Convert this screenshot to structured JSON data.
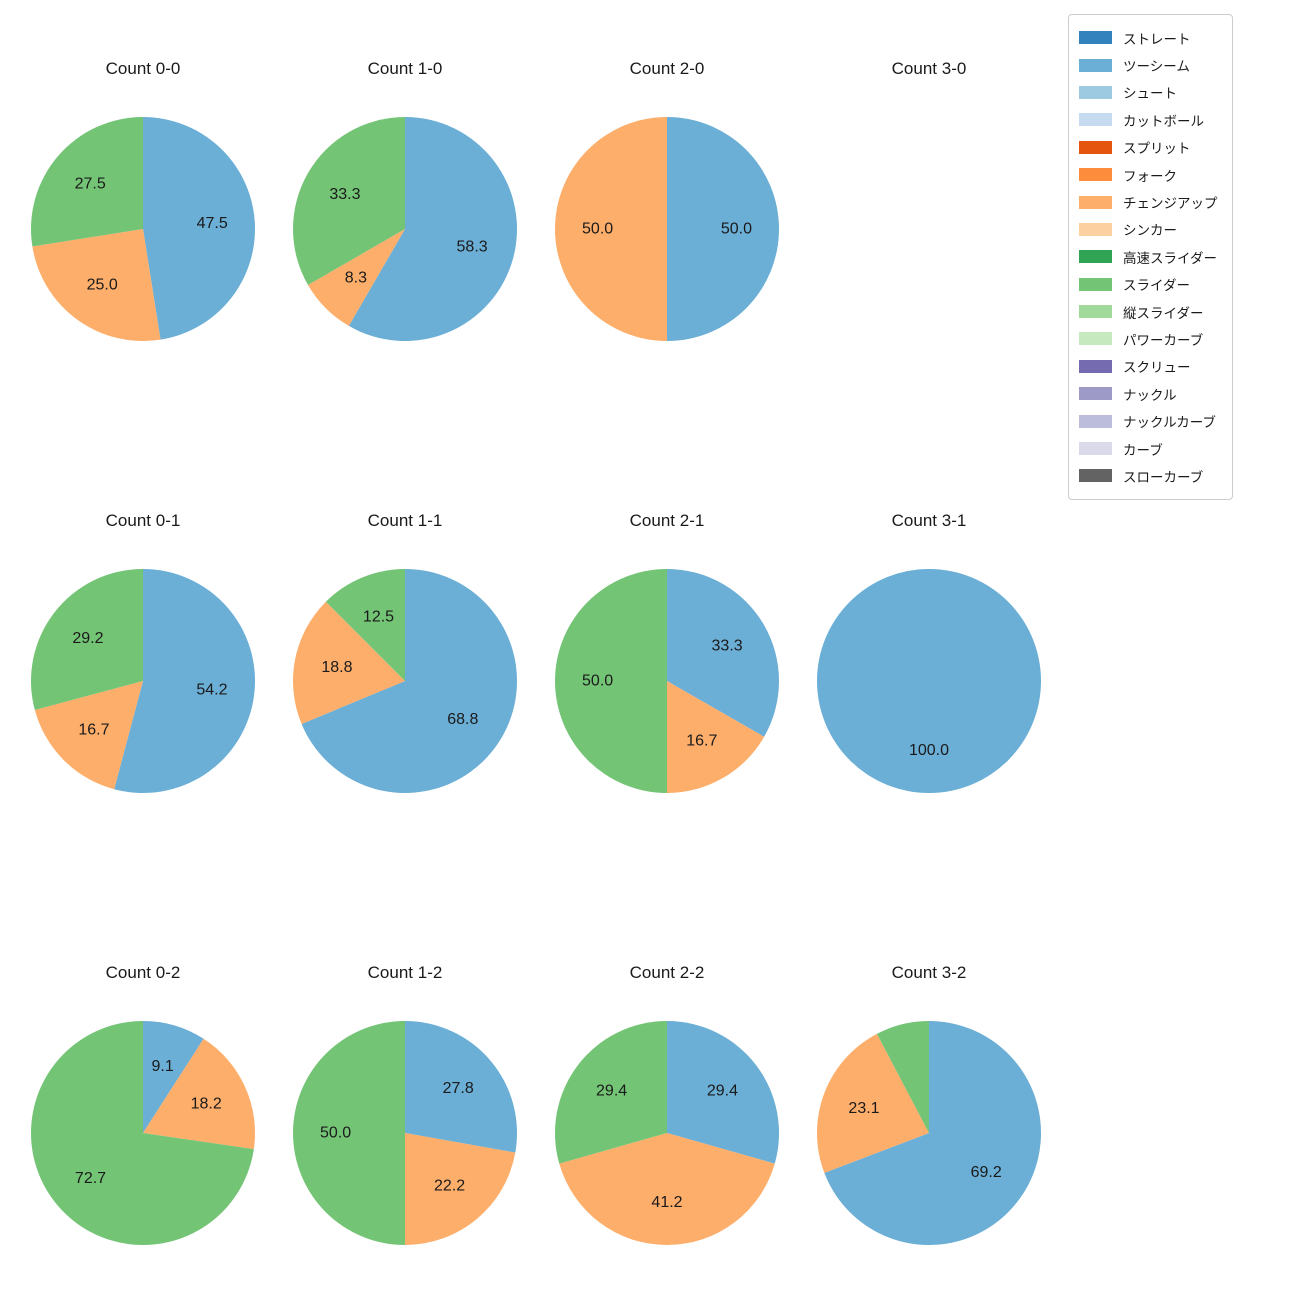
{
  "page": {
    "background": "#ffffff"
  },
  "legend": {
    "position": "top-right",
    "border_color": "#cccccc",
    "items": [
      {
        "key": "straight",
        "label": "ストレート",
        "color": "#3182bd"
      },
      {
        "key": "two-seam",
        "label": "ツーシーム",
        "color": "#6baed6"
      },
      {
        "key": "shoot",
        "label": "シュート",
        "color": "#9ecae1"
      },
      {
        "key": "cut-ball",
        "label": "カットボール",
        "color": "#c6dbef"
      },
      {
        "key": "split",
        "label": "スプリット",
        "color": "#e6550d"
      },
      {
        "key": "fork",
        "label": "フォーク",
        "color": "#fd8d3c"
      },
      {
        "key": "changeup",
        "label": "チェンジアップ",
        "color": "#fdae6b"
      },
      {
        "key": "sinker",
        "label": "シンカー",
        "color": "#fdd0a2"
      },
      {
        "key": "high-speed-slider",
        "label": "高速スライダー",
        "color": "#31a354"
      },
      {
        "key": "slider",
        "label": "スライダー",
        "color": "#74c476"
      },
      {
        "key": "vertical-slider",
        "label": "縦スライダー",
        "color": "#a1d99b"
      },
      {
        "key": "power-curve",
        "label": "パワーカーブ",
        "color": "#c7e9c0"
      },
      {
        "key": "screw",
        "label": "スクリュー",
        "color": "#756bb1"
      },
      {
        "key": "knuckle",
        "label": "ナックル",
        "color": "#9e9ac8"
      },
      {
        "key": "knuckle-curve",
        "label": "ナックルカーブ",
        "color": "#bcbddc"
      },
      {
        "key": "curve",
        "label": "カーブ",
        "color": "#dadaeb"
      },
      {
        "key": "slow-curve",
        "label": "スローカーブ",
        "color": "#636363"
      }
    ]
  },
  "chart_data": [
    {
      "type": "pie",
      "title": "Count 0-0",
      "start_angle": "top",
      "direction": "clockwise",
      "label_distance": 0.62,
      "slices": [
        {
          "key": "two-seam",
          "label": "ツーシーム",
          "value": 47.5,
          "pct_label": "47.5",
          "color": "#6baed6"
        },
        {
          "key": "changeup",
          "label": "チェンジアップ",
          "value": 25.0,
          "pct_label": "25.0",
          "color": "#fdae6b"
        },
        {
          "key": "slider",
          "label": "スライダー",
          "value": 27.5,
          "pct_label": "27.5",
          "color": "#74c476"
        }
      ]
    },
    {
      "type": "pie",
      "title": "Count 1-0",
      "start_angle": "top",
      "direction": "clockwise",
      "label_distance": 0.62,
      "slices": [
        {
          "key": "two-seam",
          "label": "ツーシーム",
          "value": 58.3,
          "pct_label": "58.3",
          "color": "#6baed6"
        },
        {
          "key": "changeup",
          "label": "チェンジアップ",
          "value": 8.3,
          "pct_label": "8.3",
          "color": "#fdae6b"
        },
        {
          "key": "slider",
          "label": "スライダー",
          "value": 33.3,
          "pct_label": "33.3",
          "color": "#74c476"
        }
      ]
    },
    {
      "type": "pie",
      "title": "Count 2-0",
      "start_angle": "top",
      "direction": "clockwise",
      "label_distance": 0.62,
      "slices": [
        {
          "key": "two-seam",
          "label": "ツーシーム",
          "value": 50.0,
          "pct_label": "50.0",
          "color": "#6baed6"
        },
        {
          "key": "changeup",
          "label": "チェンジアップ",
          "value": 50.0,
          "pct_label": "50.0",
          "color": "#fdae6b"
        }
      ]
    },
    {
      "type": "pie",
      "title": "Count 3-0",
      "start_angle": "top",
      "direction": "clockwise",
      "label_distance": 0.62,
      "slices": []
    },
    {
      "type": "pie",
      "title": "Count 0-1",
      "start_angle": "top",
      "direction": "clockwise",
      "label_distance": 0.62,
      "slices": [
        {
          "key": "two-seam",
          "label": "ツーシーム",
          "value": 54.2,
          "pct_label": "54.2",
          "color": "#6baed6"
        },
        {
          "key": "changeup",
          "label": "チェンジアップ",
          "value": 16.7,
          "pct_label": "16.7",
          "color": "#fdae6b"
        },
        {
          "key": "slider",
          "label": "スライダー",
          "value": 29.2,
          "pct_label": "29.2",
          "color": "#74c476"
        }
      ]
    },
    {
      "type": "pie",
      "title": "Count 1-1",
      "start_angle": "top",
      "direction": "clockwise",
      "label_distance": 0.62,
      "slices": [
        {
          "key": "two-seam",
          "label": "ツーシーム",
          "value": 68.8,
          "pct_label": "68.8",
          "color": "#6baed6"
        },
        {
          "key": "changeup",
          "label": "チェンジアップ",
          "value": 18.8,
          "pct_label": "18.8",
          "color": "#fdae6b"
        },
        {
          "key": "slider",
          "label": "スライダー",
          "value": 12.5,
          "pct_label": "12.5",
          "color": "#74c476"
        }
      ]
    },
    {
      "type": "pie",
      "title": "Count 2-1",
      "start_angle": "top",
      "direction": "clockwise",
      "label_distance": 0.62,
      "slices": [
        {
          "key": "two-seam",
          "label": "ツーシーム",
          "value": 33.3,
          "pct_label": "33.3",
          "color": "#6baed6"
        },
        {
          "key": "changeup",
          "label": "チェンジアップ",
          "value": 16.7,
          "pct_label": "16.7",
          "color": "#fdae6b"
        },
        {
          "key": "slider",
          "label": "スライダー",
          "value": 50.0,
          "pct_label": "50.0",
          "color": "#74c476"
        }
      ]
    },
    {
      "type": "pie",
      "title": "Count 3-1",
      "start_angle": "top",
      "direction": "clockwise",
      "label_distance": 0.62,
      "slices": [
        {
          "key": "two-seam",
          "label": "ツーシーム",
          "value": 100.0,
          "pct_label": "100.0",
          "color": "#6baed6"
        }
      ]
    },
    {
      "type": "pie",
      "title": "Count 0-2",
      "start_angle": "top",
      "direction": "clockwise",
      "label_distance": 0.62,
      "slices": [
        {
          "key": "two-seam",
          "label": "ツーシーム",
          "value": 9.1,
          "pct_label": "9.1",
          "color": "#6baed6"
        },
        {
          "key": "changeup",
          "label": "チェンジアップ",
          "value": 18.2,
          "pct_label": "18.2",
          "color": "#fdae6b"
        },
        {
          "key": "slider",
          "label": "スライダー",
          "value": 72.7,
          "pct_label": "72.7",
          "color": "#74c476"
        }
      ]
    },
    {
      "type": "pie",
      "title": "Count 1-2",
      "start_angle": "top",
      "direction": "clockwise",
      "label_distance": 0.62,
      "slices": [
        {
          "key": "two-seam",
          "label": "ツーシーム",
          "value": 27.8,
          "pct_label": "27.8",
          "color": "#6baed6"
        },
        {
          "key": "changeup",
          "label": "チェンジアップ",
          "value": 22.2,
          "pct_label": "22.2",
          "color": "#fdae6b"
        },
        {
          "key": "slider",
          "label": "スライダー",
          "value": 50.0,
          "pct_label": "50.0",
          "color": "#74c476"
        }
      ]
    },
    {
      "type": "pie",
      "title": "Count 2-2",
      "start_angle": "top",
      "direction": "clockwise",
      "label_distance": 0.62,
      "slices": [
        {
          "key": "two-seam",
          "label": "ツーシーム",
          "value": 29.4,
          "pct_label": "29.4",
          "color": "#6baed6"
        },
        {
          "key": "changeup",
          "label": "チェンジアップ",
          "value": 41.2,
          "pct_label": "41.2",
          "color": "#fdae6b"
        },
        {
          "key": "slider",
          "label": "スライダー",
          "value": 29.4,
          "pct_label": "29.4",
          "color": "#74c476"
        }
      ]
    },
    {
      "type": "pie",
      "title": "Count 3-2",
      "start_angle": "top",
      "direction": "clockwise",
      "label_distance": 0.62,
      "slices": [
        {
          "key": "two-seam",
          "label": "ツーシーム",
          "value": 69.2,
          "pct_label": "69.2",
          "color": "#6baed6"
        },
        {
          "key": "changeup",
          "label": "チェンジアップ",
          "value": 23.1,
          "pct_label": "23.1",
          "color": "#fdae6b"
        },
        {
          "key": "slider",
          "label": "スライダー",
          "value": 7.7,
          "pct_label": "",
          "color": "#74c476"
        }
      ]
    }
  ]
}
